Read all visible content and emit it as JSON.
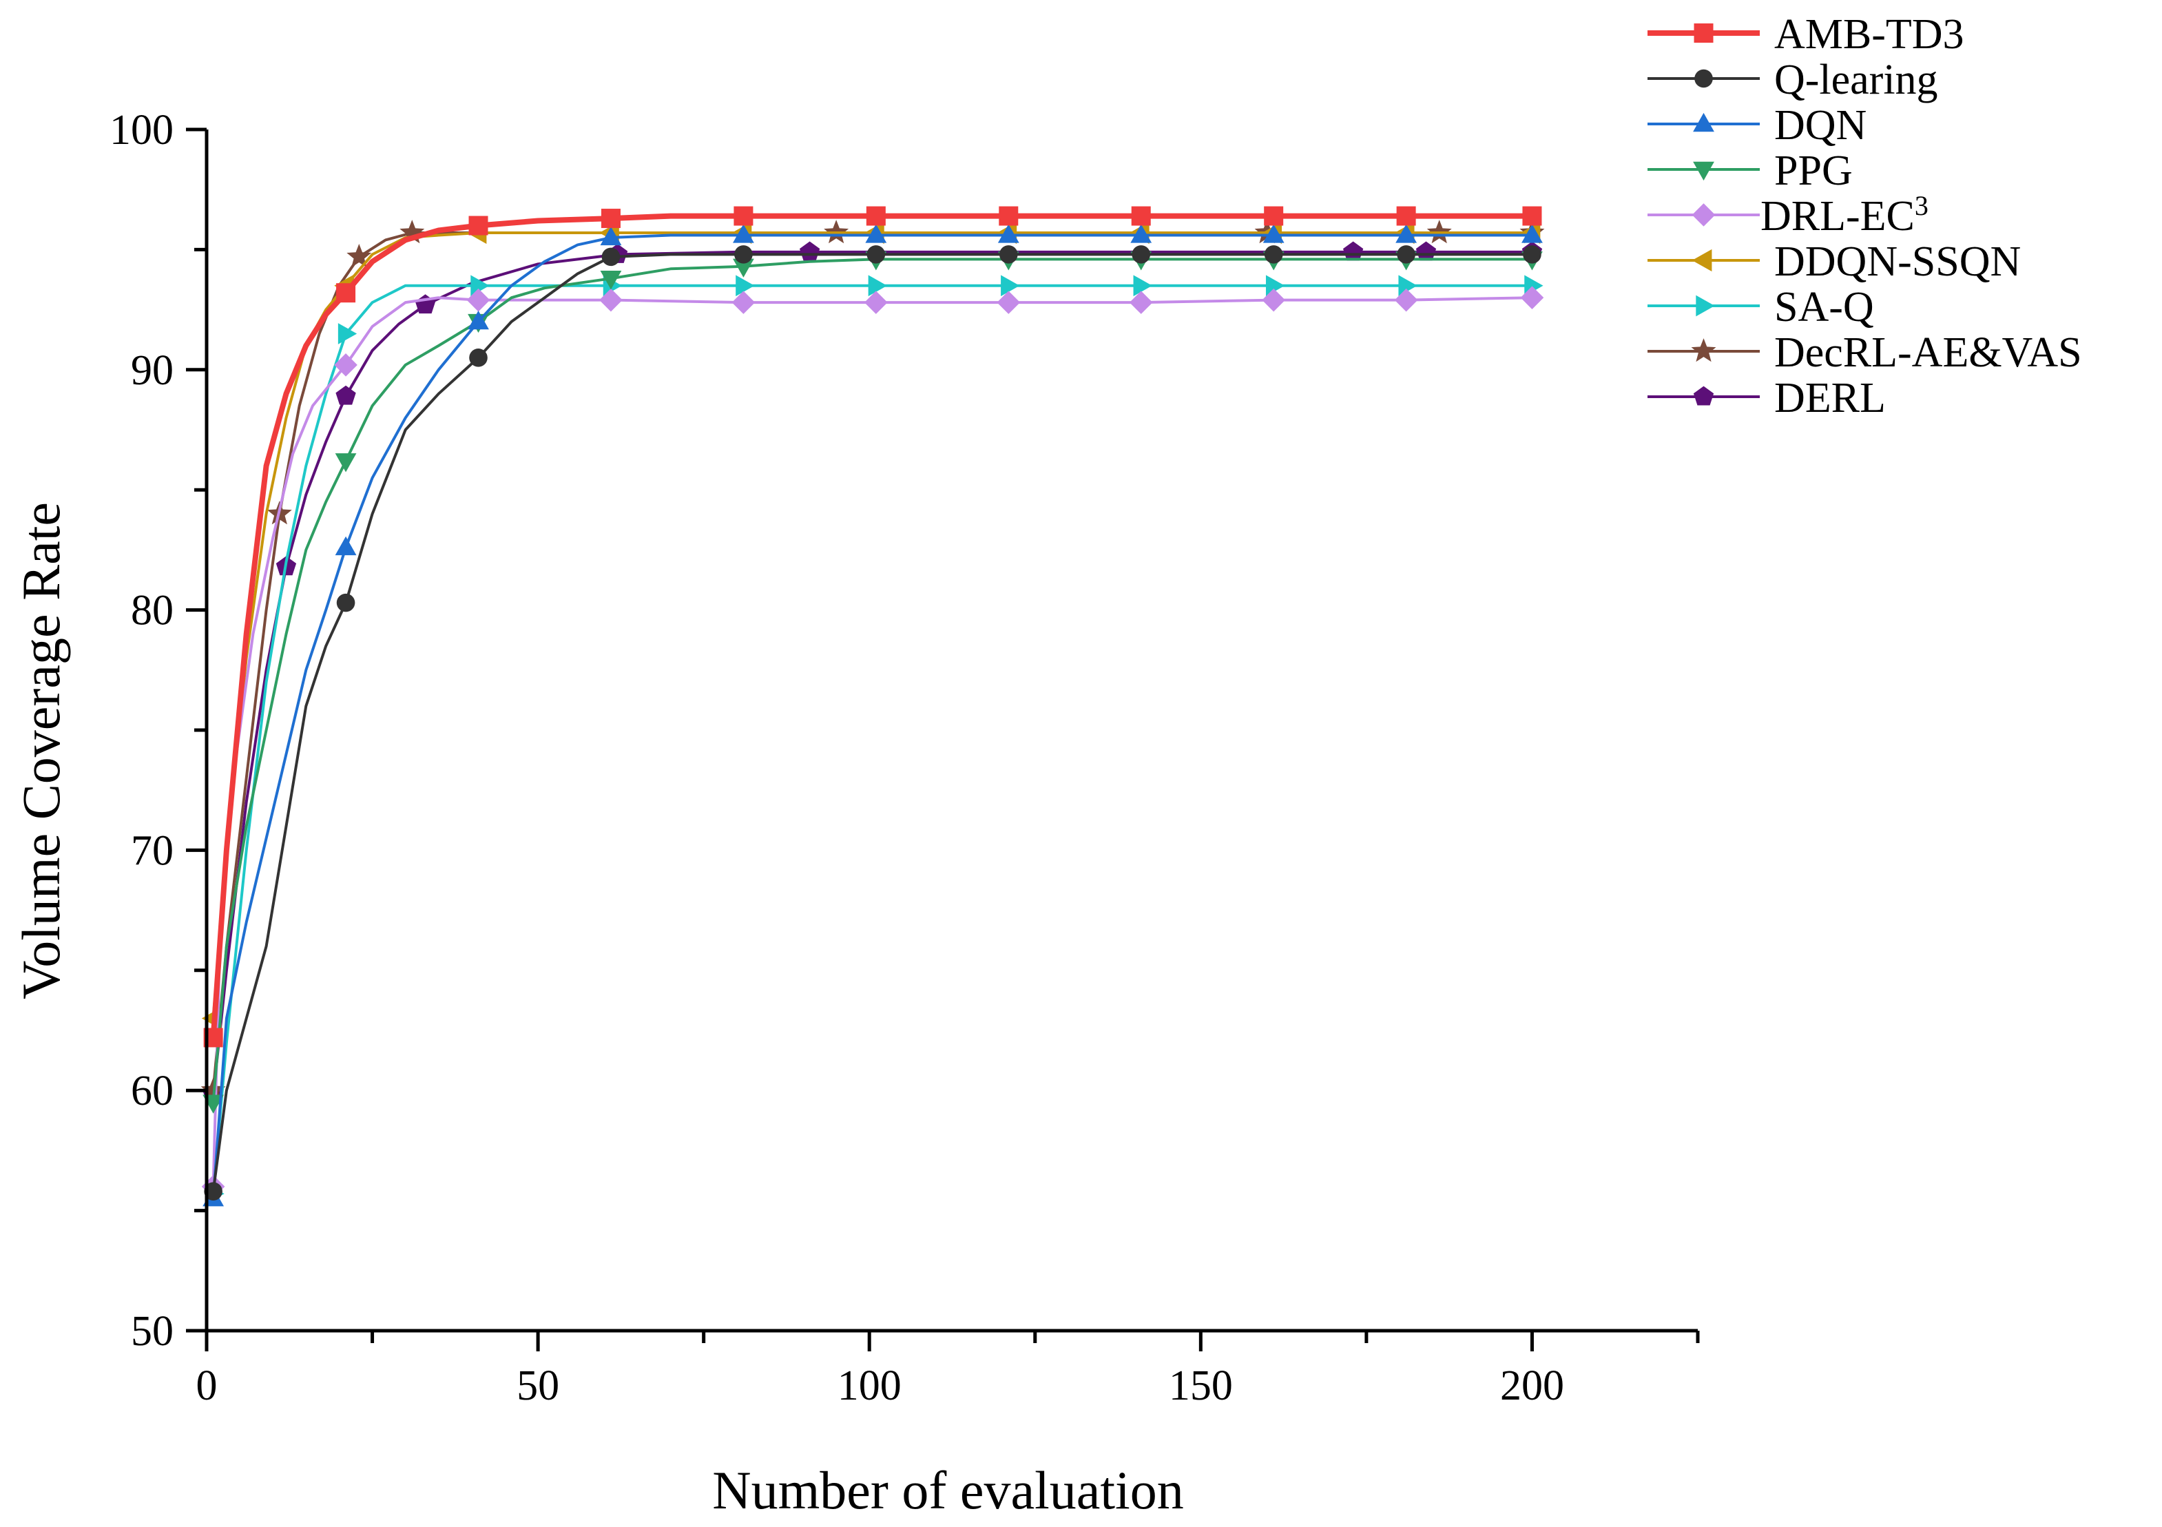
{
  "chart_data": {
    "type": "line",
    "title": "",
    "xlabel": "Number of evaluation",
    "ylabel": "Volume Coverage Rate",
    "xlim": [
      0,
      225
    ],
    "ylim": [
      50,
      100
    ],
    "xticks": [
      0,
      50,
      100,
      150,
      200
    ],
    "yticks": [
      50,
      60,
      70,
      80,
      90,
      100
    ],
    "grid": false,
    "legend_position": "top-right outside",
    "series": [
      {
        "name": "AMB-TD3",
        "color": "#f03c3c",
        "marker": "square",
        "bold": true,
        "x": [
          1,
          3,
          6,
          9,
          12,
          15,
          18,
          21,
          25,
          30,
          35,
          41,
          50,
          61,
          70,
          81,
          101,
          121,
          141,
          161,
          181,
          200
        ],
        "y": [
          62.2,
          70.0,
          79.0,
          86.0,
          89.0,
          91.0,
          92.3,
          93.2,
          94.5,
          95.4,
          95.8,
          96.0,
          96.2,
          96.3,
          96.4,
          96.4,
          96.4,
          96.4,
          96.4,
          96.4,
          96.4,
          96.4
        ],
        "marker_x": [
          1,
          21,
          41,
          61,
          81,
          101,
          121,
          141,
          161,
          181,
          200
        ]
      },
      {
        "name": "Q-learing",
        "color": "#333333",
        "marker": "circle",
        "x": [
          1,
          3,
          6,
          9,
          12,
          15,
          18,
          21,
          25,
          30,
          35,
          41,
          46,
          51,
          56,
          61,
          70,
          81,
          101,
          121,
          141,
          161,
          181,
          200
        ],
        "y": [
          55.8,
          60.0,
          63.0,
          66.0,
          71.0,
          76.0,
          78.5,
          80.3,
          84.0,
          87.5,
          89.0,
          90.5,
          92.0,
          93.0,
          94.0,
          94.7,
          94.8,
          94.8,
          94.8,
          94.8,
          94.8,
          94.8,
          94.8,
          94.8
        ],
        "marker_x": [
          1,
          21,
          41,
          61,
          81,
          101,
          121,
          141,
          161,
          181,
          200
        ]
      },
      {
        "name": "DQN",
        "color": "#1f6fd1",
        "marker": "triangle-up",
        "x": [
          1,
          3,
          6,
          9,
          12,
          15,
          18,
          21,
          25,
          30,
          35,
          41,
          46,
          51,
          56,
          61,
          70,
          81,
          101,
          121,
          141,
          161,
          181,
          200
        ],
        "y": [
          55.5,
          63.0,
          67.0,
          70.5,
          74.0,
          77.5,
          80.0,
          82.6,
          85.5,
          88.0,
          90.0,
          92.0,
          93.5,
          94.5,
          95.2,
          95.5,
          95.6,
          95.6,
          95.6,
          95.6,
          95.6,
          95.6,
          95.6,
          95.6
        ],
        "marker_x": [
          1,
          21,
          41,
          61,
          81,
          101,
          121,
          141,
          161,
          181,
          200
        ]
      },
      {
        "name": "PPG",
        "color": "#2e9e63",
        "marker": "triangle-down",
        "x": [
          1,
          3,
          6,
          9,
          12,
          15,
          18,
          21,
          25,
          30,
          35,
          41,
          46,
          51,
          56,
          61,
          70,
          81,
          91,
          101,
          121,
          141,
          161,
          181,
          200
        ],
        "y": [
          59.5,
          66.0,
          71.0,
          75.0,
          79.0,
          82.5,
          84.5,
          86.2,
          88.5,
          90.2,
          91.0,
          92.0,
          93.0,
          93.4,
          93.6,
          93.8,
          94.2,
          94.3,
          94.5,
          94.6,
          94.6,
          94.6,
          94.6,
          94.6,
          94.6
        ],
        "marker_x": [
          1,
          21,
          41,
          61,
          81,
          101,
          121,
          141,
          161,
          181,
          200
        ]
      },
      {
        "name": "DRL-EC",
        "name_sup": "3",
        "color": "#c48ae8",
        "marker": "diamond",
        "x": [
          1,
          2,
          4,
          7,
          10,
          13,
          16,
          21,
          25,
          30,
          35,
          41,
          61,
          81,
          101,
          121,
          141,
          161,
          181,
          200
        ],
        "y": [
          56.0,
          66.0,
          73.0,
          79.0,
          83.0,
          86.5,
          88.5,
          90.2,
          91.8,
          92.8,
          93.0,
          92.9,
          92.9,
          92.8,
          92.8,
          92.8,
          92.8,
          92.9,
          92.9,
          93.0
        ],
        "marker_x": [
          1,
          21,
          41,
          61,
          81,
          101,
          121,
          141,
          161,
          181,
          200
        ]
      },
      {
        "name": "DDQN-SSQN",
        "color": "#c8960c",
        "marker": "triangle-left",
        "x": [
          1,
          3,
          6,
          9,
          12,
          15,
          18,
          21,
          25,
          30,
          35,
          41,
          61,
          81,
          101,
          121,
          141,
          161,
          181,
          200
        ],
        "y": [
          63.0,
          70.0,
          78.0,
          84.0,
          88.0,
          91.0,
          92.5,
          93.5,
          94.8,
          95.5,
          95.6,
          95.7,
          95.7,
          95.7,
          95.7,
          95.7,
          95.7,
          95.7,
          95.7,
          95.7
        ],
        "marker_x": [
          1,
          21,
          41,
          61,
          81,
          101,
          121,
          141,
          161,
          181,
          200
        ]
      },
      {
        "name": "SA-Q",
        "color": "#1ec8c8",
        "marker": "triangle-right",
        "x": [
          1,
          3,
          6,
          9,
          12,
          15,
          18,
          21,
          25,
          30,
          35,
          41,
          61,
          81,
          101,
          121,
          141,
          161,
          181,
          200
        ],
        "y": [
          55.7,
          62.0,
          70.0,
          77.0,
          82.0,
          86.0,
          89.0,
          91.5,
          92.8,
          93.5,
          93.5,
          93.5,
          93.5,
          93.5,
          93.5,
          93.5,
          93.5,
          93.5,
          93.5,
          93.5
        ],
        "marker_x": [
          1,
          21,
          41,
          61,
          81,
          101,
          121,
          141,
          161,
          181,
          200
        ]
      },
      {
        "name": "DecRL-AE&VAS",
        "color": "#7a4a3a",
        "marker": "star",
        "x": [
          1,
          3,
          6,
          9,
          11,
          14,
          17,
          20,
          23,
          27,
          31,
          40,
          60,
          95,
          130,
          160,
          186,
          200
        ],
        "y": [
          60.0,
          66.0,
          73.0,
          80.0,
          84.0,
          88.5,
          91.5,
          93.5,
          94.7,
          95.4,
          95.7,
          95.7,
          95.7,
          95.7,
          95.7,
          95.7,
          95.7,
          95.7
        ],
        "marker_x": [
          1,
          11,
          23,
          31,
          95,
          160,
          186,
          200
        ]
      },
      {
        "name": "DERL",
        "color": "#5c0f78",
        "marker": "pentagon",
        "x": [
          1,
          3,
          6,
          9,
          12,
          15,
          18,
          21,
          25,
          29,
          33,
          40,
          50,
          62,
          80,
          91,
          110,
          140,
          173,
          184,
          200
        ],
        "y": [
          59.8,
          65.0,
          72.0,
          77.5,
          81.8,
          84.8,
          87.0,
          88.9,
          90.8,
          91.9,
          92.7,
          93.6,
          94.4,
          94.8,
          94.9,
          94.9,
          94.9,
          94.9,
          94.9,
          94.9,
          94.9
        ],
        "marker_x": [
          1,
          12,
          21,
          33,
          62,
          91,
          173,
          184,
          200
        ]
      }
    ]
  }
}
